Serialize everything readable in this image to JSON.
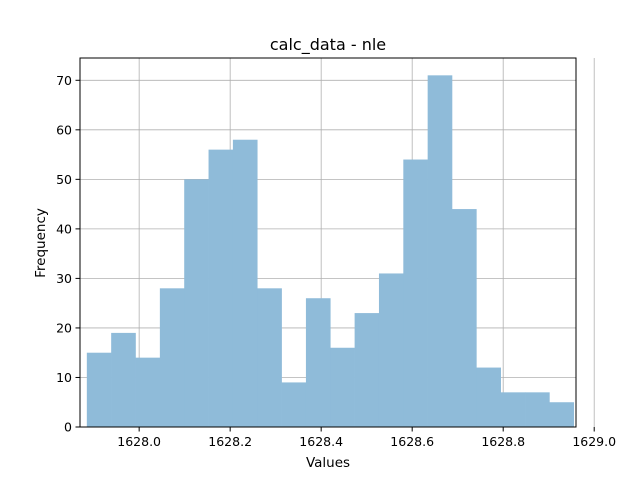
{
  "chart_data": {
    "type": "bar",
    "title": "calc_data - nle",
    "xlabel": "Values",
    "ylabel": "Frequency",
    "xlim": [
      1627.87,
      1628.96
    ],
    "ylim": [
      0,
      74.5
    ],
    "grid": true,
    "bar_color": "#8fbbd9",
    "x_ticks": [
      1628.0,
      1628.2,
      1628.4,
      1628.6,
      1628.8,
      1629.0
    ],
    "x_tick_labels": [
      "1628.0",
      "1628.2",
      "1628.4",
      "1628.6",
      "1628.8",
      "1629.0"
    ],
    "y_ticks": [
      0,
      10,
      20,
      30,
      40,
      50,
      60,
      70
    ],
    "y_tick_labels": [
      "0",
      "10",
      "20",
      "30",
      "40",
      "50",
      "60",
      "70"
    ],
    "bin_start": 1627.885,
    "bin_width": 0.0535,
    "values": [
      15,
      19,
      14,
      28,
      50,
      56,
      58,
      28,
      9,
      26,
      16,
      23,
      31,
      54,
      71,
      44,
      12,
      7,
      7,
      5
    ]
  }
}
